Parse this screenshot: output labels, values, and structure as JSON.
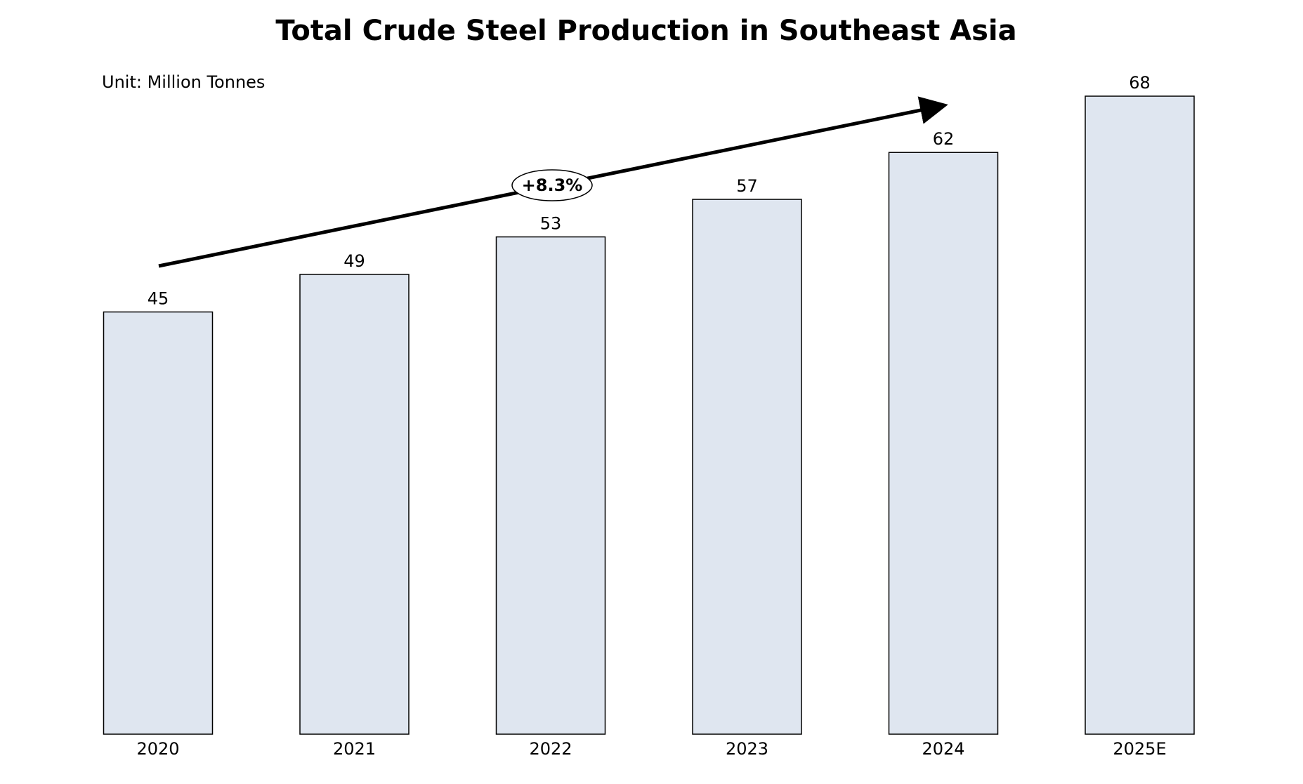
{
  "chart_data": {
    "type": "bar",
    "title": "Total Crude Steel Production in Southeast Asia",
    "subtitle": "Unit: Million Tonnes",
    "categories": [
      "2020",
      "2021",
      "2022",
      "2023",
      "2024",
      "2025E"
    ],
    "values": [
      45,
      49,
      53,
      57,
      62,
      68
    ],
    "color": "#dfe6f0",
    "annotation": "+8.3%"
  }
}
